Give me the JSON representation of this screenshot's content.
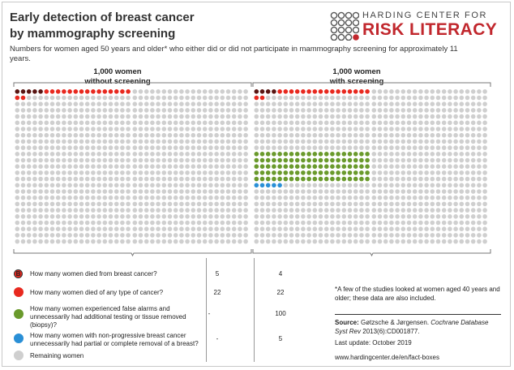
{
  "title": {
    "line1": "Early detection of breast cancer",
    "line2": "by mammography screening"
  },
  "logo": {
    "top": "HARDING CENTER FOR",
    "bottom": "RISK LITERACY"
  },
  "subtitle": "Numbers for women aged 50 years and older* who either did or did not participate in mammography screening for approximately 11 years.",
  "panels": [
    {
      "line1": "1,000 women",
      "line2": "without screening"
    },
    {
      "line1": "1,000 women",
      "line2": "with screening"
    }
  ],
  "colors": {
    "remaining": "#cfcfcf",
    "died_breast": "#5a1512",
    "died_cancer": "#e8291f",
    "false_alarm": "#6a9a2c",
    "overtreated": "#2a8fd6"
  },
  "counts": {
    "without": {
      "died_breast": 5,
      "died_cancer_other": 17,
      "false_alarm": 0,
      "overtreated": 0
    },
    "with": {
      "died_breast": 4,
      "died_cancer_other": 18,
      "false_alarm": 100,
      "overtreated": 5
    }
  },
  "legend": [
    {
      "icon": "letter-b-circle-icon",
      "icon_letter": "B",
      "color": "#e8291f",
      "text": "How many women died from breast cancer?",
      "without": "5",
      "with": "4"
    },
    {
      "icon": "red-circle-icon",
      "color": "#e8291f",
      "text": "How many women died of any type of cancer?",
      "without": "22",
      "with": "22"
    },
    {
      "icon": "green-circle-icon",
      "color": "#6a9a2c",
      "text": "How many women experienced false alarms and unnecessarily had additional testing or tissue removed (biopsy)?",
      "without": "-",
      "with": "100"
    },
    {
      "icon": "blue-circle-icon",
      "color": "#2a8fd6",
      "text": "How many women with non-progressive breast cancer unnecessarily had partial or complete removal of a breast?",
      "without": "-",
      "with": "5"
    },
    {
      "icon": "grey-circle-icon",
      "color": "#cfcfcf",
      "text": "Remaining women",
      "without": "",
      "with": ""
    }
  ],
  "footnote": "*A few of the studies looked at women aged 40 years and older; these data are also included.",
  "source": {
    "label": "Source:",
    "text_plain": " Gøtzsche & Jørgensen. ",
    "text_italic": "Cochrane Database Syst Rev",
    "text_tail": " 2013(6):CD001877."
  },
  "last_update": "Last update: October 2019",
  "url": "www.hardingcenter.de/en/fact-boxes"
}
